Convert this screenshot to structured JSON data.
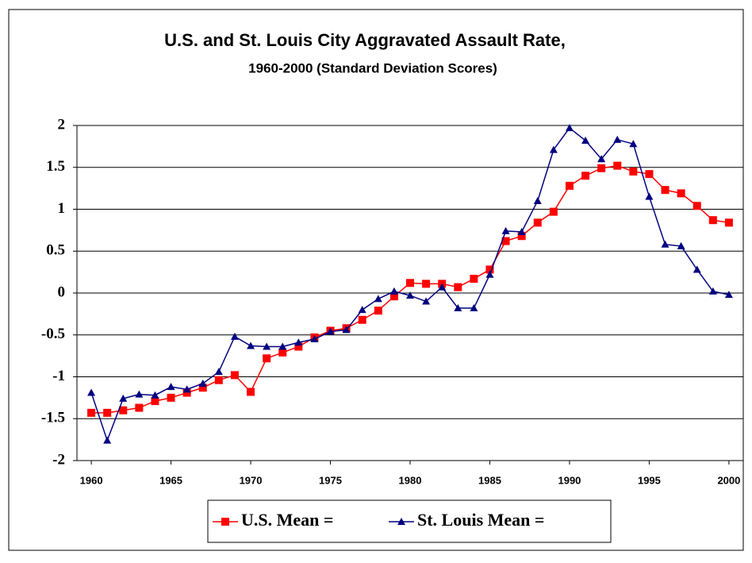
{
  "chart_data": {
    "type": "line",
    "title": "U.S. and St. Louis City Aggravated Assault Rate,",
    "subtitle": "1960-2000 (Standard Deviation Scores)",
    "x": [
      1960,
      1961,
      1962,
      1963,
      1964,
      1965,
      1966,
      1967,
      1968,
      1969,
      1970,
      1971,
      1972,
      1973,
      1974,
      1975,
      1976,
      1977,
      1978,
      1979,
      1980,
      1981,
      1982,
      1983,
      1984,
      1985,
      1986,
      1987,
      1988,
      1989,
      1990,
      1991,
      1992,
      1993,
      1994,
      1995,
      1996,
      1997,
      1998,
      1999,
      2000
    ],
    "series": [
      {
        "name": "U.S. Mean =",
        "color": "#ff0000",
        "marker": "square",
        "values": [
          -1.43,
          -1.43,
          -1.4,
          -1.37,
          -1.29,
          -1.25,
          -1.19,
          -1.13,
          -1.04,
          -0.98,
          -1.18,
          -0.78,
          -0.71,
          -0.64,
          -0.53,
          -0.45,
          -0.42,
          -0.32,
          -0.21,
          -0.04,
          0.12,
          0.11,
          0.11,
          0.07,
          0.17,
          0.28,
          0.62,
          0.68,
          0.84,
          0.97,
          1.28,
          1.4,
          1.49,
          1.52,
          1.45,
          1.42,
          1.23,
          1.19,
          1.04,
          0.87,
          0.84
        ]
      },
      {
        "name": "St. Louis Mean =",
        "color": "#000080",
        "marker": "triangle",
        "values": [
          -1.19,
          -1.76,
          -1.26,
          -1.21,
          -1.22,
          -1.12,
          -1.15,
          -1.08,
          -0.94,
          -0.52,
          -0.63,
          -0.64,
          -0.64,
          -0.59,
          -0.55,
          -0.46,
          -0.44,
          -0.2,
          -0.07,
          0.02,
          -0.03,
          -0.1,
          0.07,
          -0.18,
          -0.18,
          0.22,
          0.74,
          0.73,
          1.1,
          1.71,
          1.97,
          1.82,
          1.6,
          1.83,
          1.78,
          1.15,
          0.58,
          0.56,
          0.28,
          0.02,
          -0.02
        ]
      }
    ],
    "xlim": [
      1959.1,
      2000.9
    ],
    "xticks": [
      1960,
      1965,
      1970,
      1975,
      1980,
      1985,
      1990,
      1995,
      2000
    ],
    "ylim": [
      -2,
      2
    ],
    "yticks": [
      2,
      1.5,
      1,
      0.5,
      0,
      -0.5,
      -1,
      -1.5,
      -2
    ],
    "grid": true,
    "legend": "bottom"
  }
}
